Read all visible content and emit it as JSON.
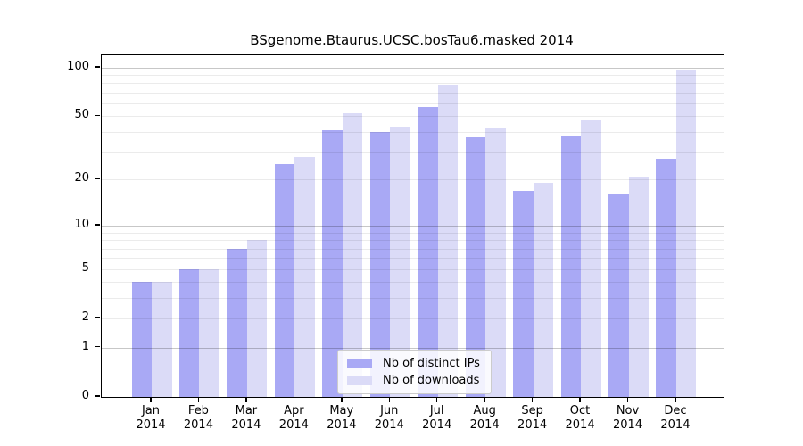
{
  "chart_data": {
    "type": "bar",
    "title": "BSgenome.Btaurus.UCSC.bosTau6.masked 2014",
    "y_scale": "log1p",
    "categories": [
      "Jan",
      "Feb",
      "Mar",
      "Apr",
      "May",
      "Jun",
      "Jul",
      "Aug",
      "Sep",
      "Oct",
      "Nov",
      "Dec"
    ],
    "x_tick_second_line": "2014",
    "series": [
      {
        "name": "Nb of distinct IPs",
        "key": "distinct-ips",
        "color": "#a9a9f5",
        "values": [
          4,
          5,
          7,
          25,
          41,
          40,
          57,
          37,
          17,
          38,
          16,
          27
        ]
      },
      {
        "name": "Nb of downloads",
        "key": "downloads",
        "color": "#dbdbf7",
        "values": [
          4,
          5,
          8,
          28,
          52,
          43,
          78,
          42,
          19,
          48,
          21,
          96
        ]
      }
    ],
    "yticks": [
      0,
      1,
      2,
      5,
      10,
      20,
      50,
      100
    ],
    "ylim": [
      0,
      119
    ],
    "grid": true,
    "grid_minor_values": [
      2,
      3,
      4,
      5,
      6,
      7,
      8,
      9,
      20,
      30,
      40,
      50,
      60,
      70,
      80,
      90
    ],
    "grid_major_values": [
      1,
      10,
      100
    ],
    "legend_position": "bottom-center"
  },
  "colors": {
    "grid_minor": "rgba(0,0,0,0.08)",
    "grid_major": "rgba(0,0,0,0.22)",
    "axis": "#000000"
  }
}
